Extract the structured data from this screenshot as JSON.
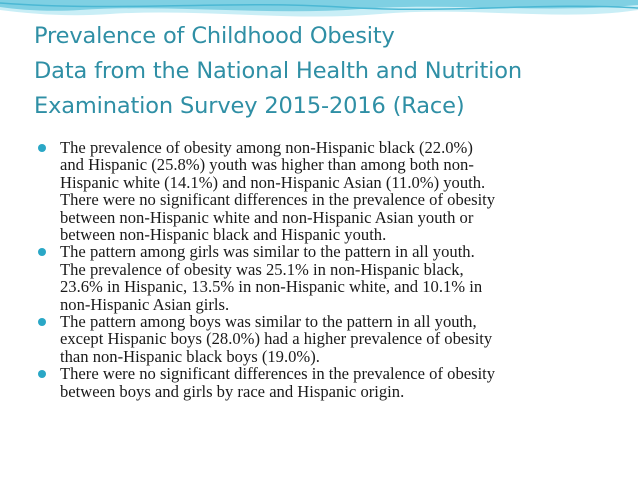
{
  "slide": {
    "title_lines": [
      "Prevalence of Childhood Obesity",
      "Data from the National Health and Nutrition",
      "Examination Survey 2015-2016 (Race)"
    ],
    "bullets": [
      {
        "lines": [
          "The prevalence of obesity among non-Hispanic black (22.0%)",
          "and Hispanic (25.8%) youth was higher than among both non-",
          "Hispanic white (14.1%) and non-Hispanic Asian (11.0%) youth.",
          "There were no significant differences in the prevalence of obesity",
          "between non-Hispanic white and non-Hispanic Asian youth or",
          "between non-Hispanic black and Hispanic youth."
        ]
      },
      {
        "lines": [
          "The pattern among girls was similar to the pattern in all youth.",
          "The prevalence of obesity was 25.1% in non-Hispanic black,",
          "23.6% in Hispanic, 13.5% in non-Hispanic white, and 10.1% in",
          "non-Hispanic Asian girls."
        ]
      },
      {
        "lines": [
          "The pattern among boys was similar to the pattern in all youth,",
          "except Hispanic boys (28.0%) had a higher prevalence of obesity",
          "than non-Hispanic black boys (19.0%)."
        ]
      },
      {
        "lines": [
          "There were no significant differences in the prevalence of obesity",
          "between boys and girls by race and Hispanic origin."
        ]
      }
    ]
  },
  "theme": {
    "title_color": "#2f8fa5",
    "bullet_color": "#2aa7c6",
    "wave_colors": [
      "#7fd0e3",
      "#4bb8d4",
      "#c9eef6"
    ]
  }
}
